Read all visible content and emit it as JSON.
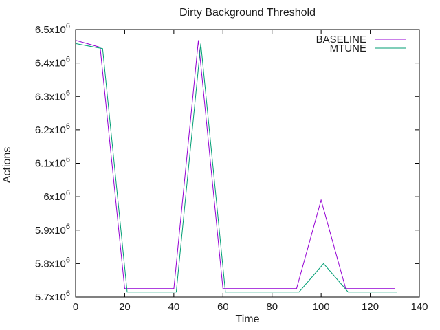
{
  "window": {
    "background": "#ffffff",
    "axis_color": "#000000",
    "text_color": "#1c1c1c"
  },
  "chart_data": {
    "type": "line",
    "title": "Dirty Background Threshold",
    "xlabel": "Time",
    "ylabel": "Actions",
    "xlim": [
      0,
      140
    ],
    "ylim": [
      5700000,
      6500000
    ],
    "grid": false,
    "legend_position": "top-right-inside",
    "x_ticks": [
      {
        "value": 0,
        "label": "0"
      },
      {
        "value": 20,
        "label": "20"
      },
      {
        "value": 40,
        "label": "40"
      },
      {
        "value": 60,
        "label": "60"
      },
      {
        "value": 80,
        "label": "80"
      },
      {
        "value": 100,
        "label": "100"
      },
      {
        "value": 120,
        "label": "120"
      },
      {
        "value": 140,
        "label": "140"
      }
    ],
    "y_ticks": [
      {
        "value": 5700000,
        "label": "5.7x10^6",
        "mantissa": "5.7x10",
        "exponent": "6"
      },
      {
        "value": 5800000,
        "label": "5.8x10^6",
        "mantissa": "5.8x10",
        "exponent": "6"
      },
      {
        "value": 5900000,
        "label": "5.9x10^6",
        "mantissa": "5.9x10",
        "exponent": "6"
      },
      {
        "value": 6000000,
        "label": "6x10^6",
        "mantissa": "6x10",
        "exponent": "6"
      },
      {
        "value": 6100000,
        "label": "6.1x10^6",
        "mantissa": "6.1x10",
        "exponent": "6"
      },
      {
        "value": 6200000,
        "label": "6.2x10^6",
        "mantissa": "6.2x10",
        "exponent": "6"
      },
      {
        "value": 6300000,
        "label": "6.3x10^6",
        "mantissa": "6.3x10",
        "exponent": "6"
      },
      {
        "value": 6400000,
        "label": "6.4x10^6",
        "mantissa": "6.4x10",
        "exponent": "6"
      },
      {
        "value": 6500000,
        "label": "6.5x10^6",
        "mantissa": "6.5x10",
        "exponent": "6"
      }
    ],
    "series": [
      {
        "name": "BASELINE",
        "color": "#9400d3",
        "points": [
          [
            0,
            6468000
          ],
          [
            10,
            6447000
          ],
          [
            20,
            5725000
          ],
          [
            30,
            5725000
          ],
          [
            40,
            5725000
          ],
          [
            50,
            6468000
          ],
          [
            60,
            5725000
          ],
          [
            70,
            5725000
          ],
          [
            80,
            5725000
          ],
          [
            90,
            5725000
          ],
          [
            100,
            5990000
          ],
          [
            110,
            5725000
          ],
          [
            120,
            5725000
          ],
          [
            130,
            5725000
          ]
        ]
      },
      {
        "name": "MTUNE",
        "color": "#009e73",
        "points": [
          [
            0,
            6458000
          ],
          [
            11,
            6443000
          ],
          [
            21,
            5715000
          ],
          [
            31,
            5715000
          ],
          [
            41,
            5715000
          ],
          [
            51,
            6458000
          ],
          [
            61,
            5715000
          ],
          [
            71,
            5715000
          ],
          [
            81,
            5715000
          ],
          [
            91,
            5715000
          ],
          [
            101,
            5800000
          ],
          [
            111,
            5715000
          ],
          [
            121,
            5715000
          ],
          [
            131,
            5715000
          ]
        ]
      }
    ]
  }
}
